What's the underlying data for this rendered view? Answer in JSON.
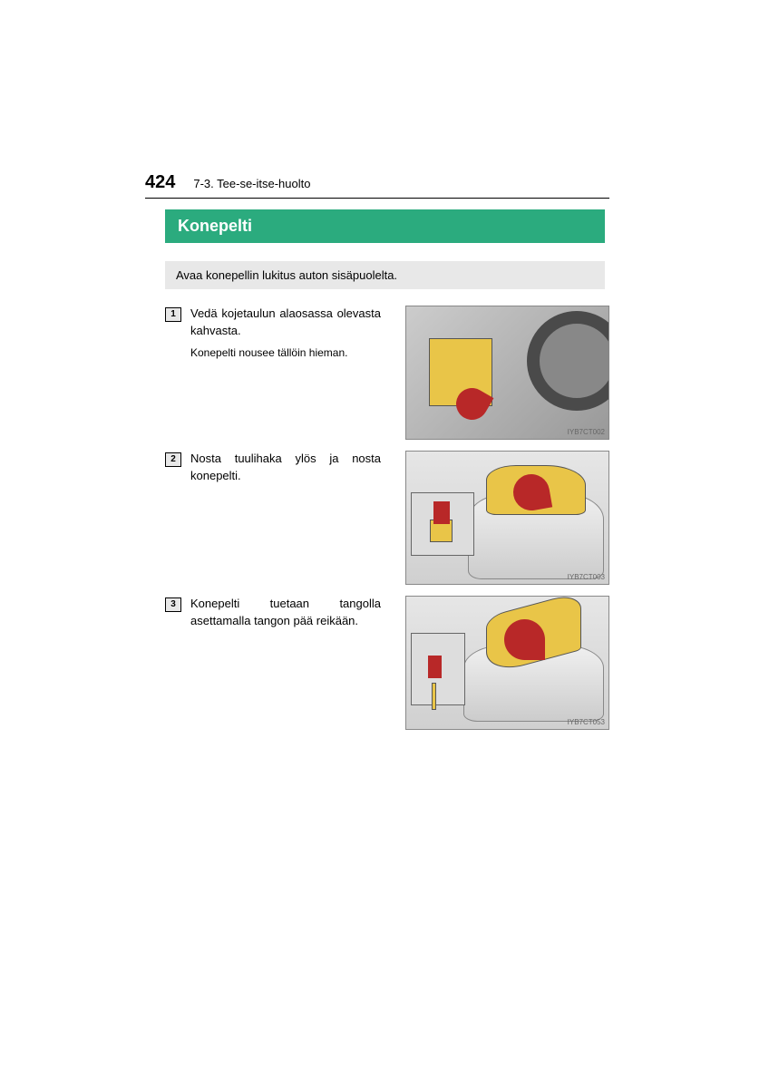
{
  "header": {
    "page_number": "424",
    "section_path": "7-3. Tee-se-itse-huolto"
  },
  "title": "Konepelti",
  "intro": "Avaa konepellin lukitus auton sisäpuolelta.",
  "steps": [
    {
      "num": "1",
      "title": "Vedä kojetaulun alaosassa olevasta kahvasta.",
      "sub": "Konepelti nousee tällöin hieman.",
      "image_ref": "IYB7CT002"
    },
    {
      "num": "2",
      "title": "Nosta tuulihaka ylös ja nosta konepelti.",
      "sub": "",
      "image_ref": "IYB7CT003"
    },
    {
      "num": "3",
      "title": "Konepelti tuetaan tangolla asettamalla tangon pää reikään.",
      "sub": "",
      "image_ref": "IYB7CT053"
    }
  ],
  "colors": {
    "accent": "#2bab7e",
    "intro_bg": "#e8e8e8",
    "highlight": "#e9c548",
    "arrow": "#b82828"
  }
}
